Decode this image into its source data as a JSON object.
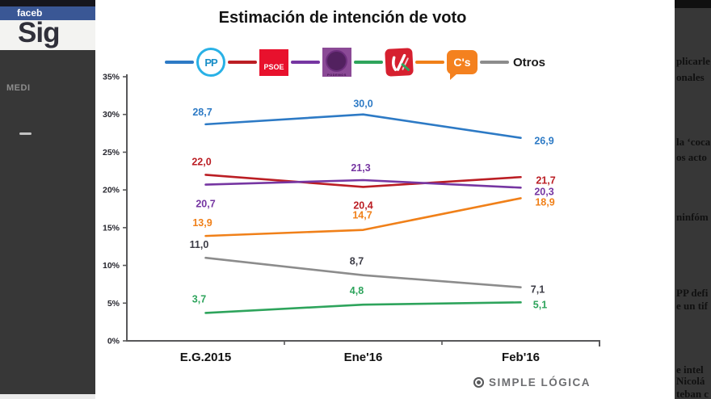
{
  "page": {
    "backdrop_left": {
      "facebook_bar": "faceb",
      "heading": "Sig",
      "menu_label": "MEDI"
    },
    "backdrop_right": {
      "fragments": [
        "plicarle",
        "onales",
        "la ‘coca",
        "os acto",
        "ninfóm",
        "PP defi",
        "e un tif",
        "e intel",
        "Nicolá",
        "teban c"
      ]
    }
  },
  "chart": {
    "source": "SIMPLE LÓGICA",
    "legend": [
      {
        "label": "PP"
      },
      {
        "label": "PSOE"
      },
      {
        "label": "PODEMOS"
      },
      {
        "label": "IU"
      },
      {
        "label": "C's"
      },
      {
        "label": "Otros"
      }
    ]
  },
  "chart_data": {
    "type": "line",
    "title": "Estimación de intención de voto",
    "categories": [
      "E.G.2015",
      "Ene'16",
      "Feb'16"
    ],
    "y_ticks": [
      "35%",
      "30%",
      "25%",
      "20%",
      "15%",
      "10%",
      "5%",
      "0%"
    ],
    "ylim": [
      0,
      35
    ],
    "unit": "%",
    "grid": false,
    "legend_position": "top",
    "series": [
      {
        "name": "PP",
        "color": "#2d7ac5",
        "values": [
          28.7,
          30.0,
          26.9
        ],
        "labels": [
          "28,7",
          "30,0",
          "26,9"
        ]
      },
      {
        "name": "PSOE",
        "color": "#bb1e24",
        "values": [
          22.0,
          20.4,
          21.7
        ],
        "labels": [
          "22,0",
          "20,4",
          "21,7"
        ]
      },
      {
        "name": "Podemos",
        "color": "#7636a2",
        "values": [
          20.7,
          21.3,
          20.3
        ],
        "labels": [
          "20,7",
          "21,3",
          "20,3"
        ]
      },
      {
        "name": "IU",
        "color": "#2ea45c",
        "values": [
          3.7,
          4.8,
          5.1
        ],
        "labels": [
          "3,7",
          "4,8",
          "5,1"
        ]
      },
      {
        "name": "C's",
        "color": "#f08019",
        "values": [
          13.9,
          14.7,
          18.9
        ],
        "labels": [
          "13,9",
          "14,7",
          "18,9"
        ]
      },
      {
        "name": "Otros",
        "color": "#8c8c8c",
        "label_color": "#3c3c46",
        "values": [
          11.0,
          8.7,
          7.1
        ],
        "labels": [
          "11,0",
          "8,7",
          "7,1"
        ]
      }
    ]
  }
}
